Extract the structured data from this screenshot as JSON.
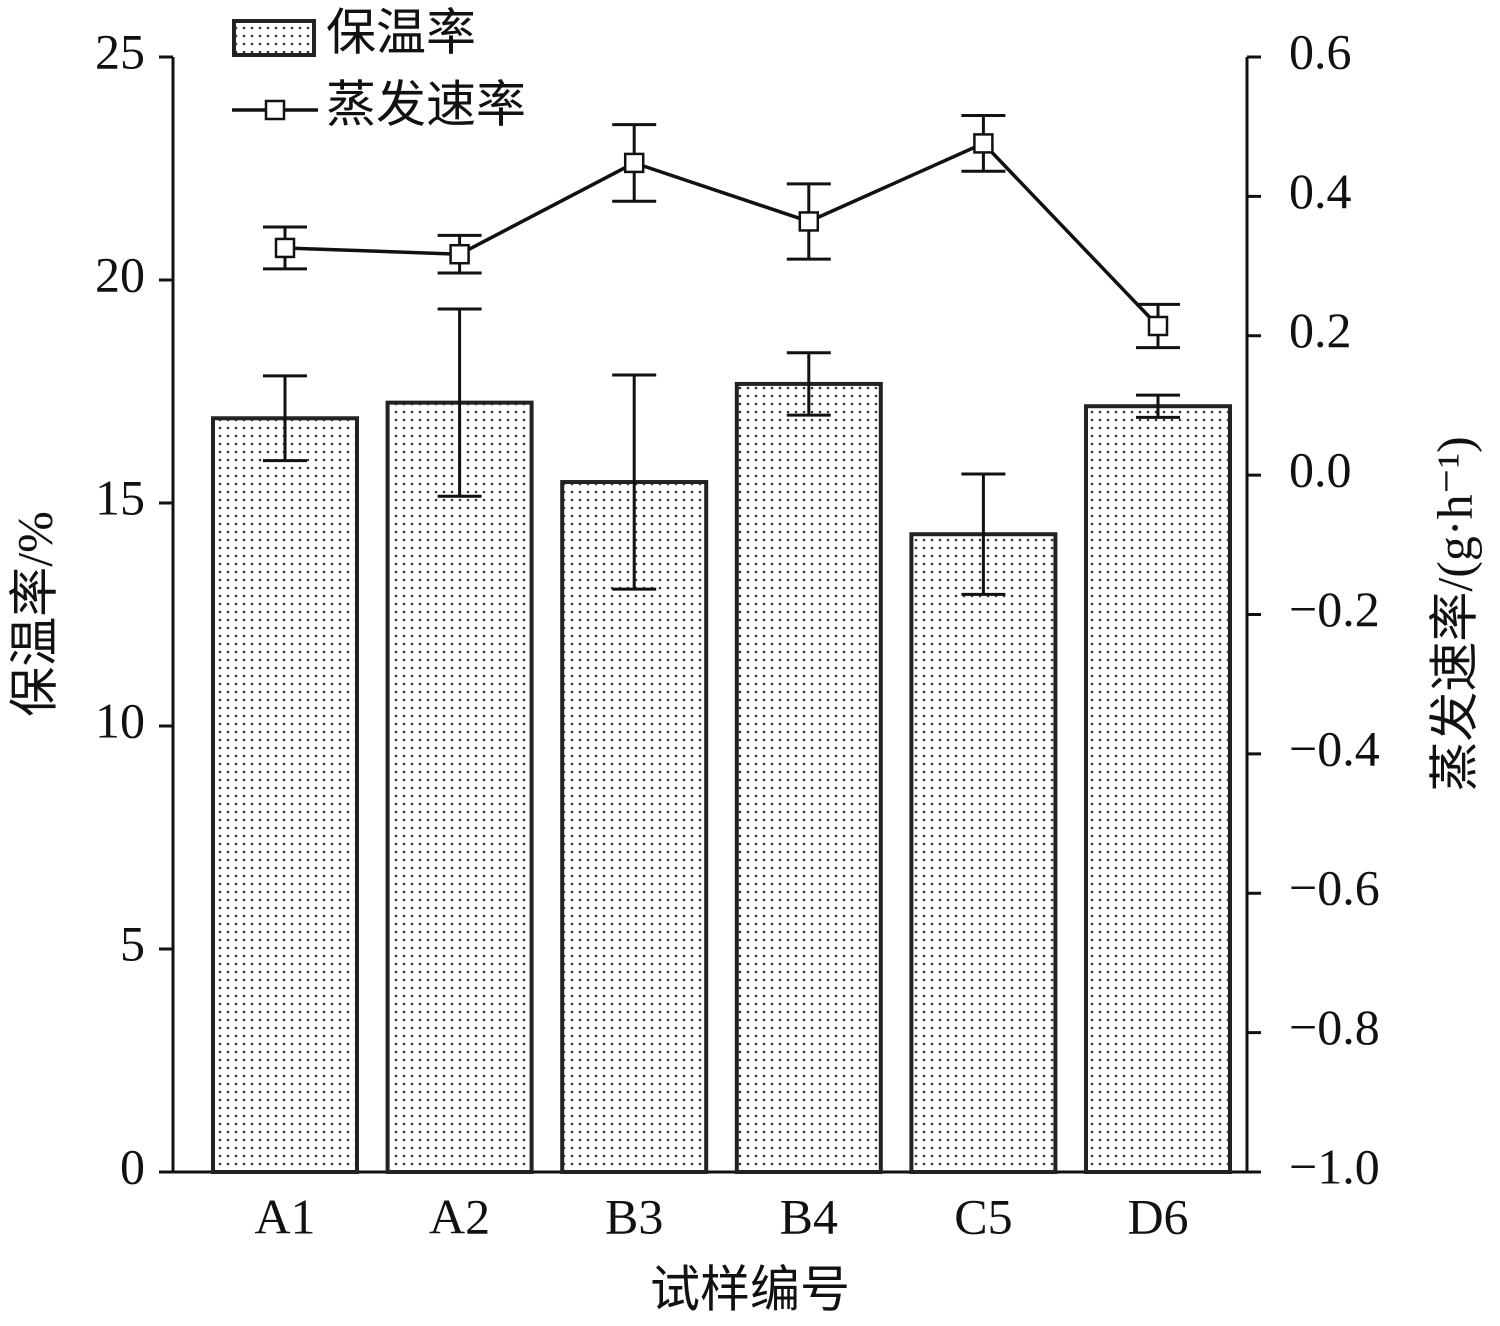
{
  "chart_data": {
    "type": "bar_line",
    "x_label": "试样编号",
    "y_label": "保温率/%",
    "y2_label": "蒸发速率/(g·h⁻¹)",
    "categories": [
      "A1",
      "A2",
      "B3",
      "B4",
      "C5",
      "D6"
    ],
    "ylim": [
      0,
      25
    ],
    "yticks": [
      0,
      5,
      10,
      15,
      20,
      25
    ],
    "y2lim": [
      -1.0,
      0.6
    ],
    "y2ticks": [
      {
        "value": -1.0,
        "label": "−1.0"
      },
      {
        "value": -0.8,
        "label": "−0.8"
      },
      {
        "value": -0.6,
        "label": "−0.6"
      },
      {
        "value": -0.4,
        "label": "−0.4"
      },
      {
        "value": -0.2,
        "label": "−0.2"
      },
      {
        "value": 0,
        "label": "0.0"
      },
      0.2,
      0.4,
      0.6
    ],
    "series": [
      {
        "name": "保温率",
        "type": "bar",
        "color": "#222222",
        "values": [
          16.9,
          17.25,
          15.47,
          17.67,
          14.3,
          17.17
        ],
        "errors": [
          0.95,
          2.1,
          2.4,
          0.7,
          1.35,
          0.25
        ]
      },
      {
        "name": "蒸发速率",
        "type": "line",
        "axis": "y2",
        "color": "#111111",
        "values": [
          0.326,
          0.317,
          0.448,
          0.364,
          0.476,
          0.214
        ],
        "errors": [
          0.03,
          0.027,
          0.055,
          0.054,
          0.04,
          0.031
        ]
      }
    ]
  }
}
